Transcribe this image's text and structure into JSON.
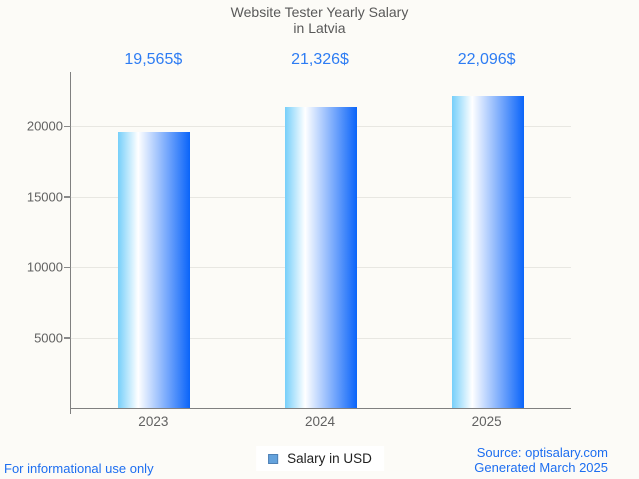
{
  "title": {
    "line1": "Website Tester Yearly Salary",
    "line2": "in Latvia"
  },
  "chart_data": {
    "type": "bar",
    "categories": [
      "2023",
      "2024",
      "2025"
    ],
    "values": [
      19565,
      21326,
      22096
    ],
    "value_labels": [
      "19,565$",
      "21,326$",
      "22,096$"
    ],
    "series_name": "Salary in USD",
    "title": "Website Tester Yearly Salary in Latvia",
    "xlabel": "",
    "ylabel": "",
    "ylim": [
      0,
      23830
    ],
    "yticks": [
      5000,
      10000,
      15000,
      20000
    ],
    "ytick_labels": [
      "5000",
      "10000",
      "15000",
      "20000"
    ],
    "grid": "horizontal",
    "legend_position": "bottom-center"
  },
  "legend": {
    "label": "Salary in USD"
  },
  "footer": {
    "left": "For informational use only",
    "source": "Source: optisalary.com",
    "generated": "Generated March 2025"
  },
  "colors": {
    "accent_blue": "#2d7cf3",
    "footer_blue": "#1d6ef0",
    "title_gray": "#595959",
    "axis_gray": "#808080",
    "bar_gradient_left": "#76cffa",
    "bar_gradient_mid": "#ffffff",
    "bar_gradient_right": "#0a64f9",
    "legend_marker_fill": "#64a2dc",
    "legend_marker_border": "#4f81b5"
  }
}
